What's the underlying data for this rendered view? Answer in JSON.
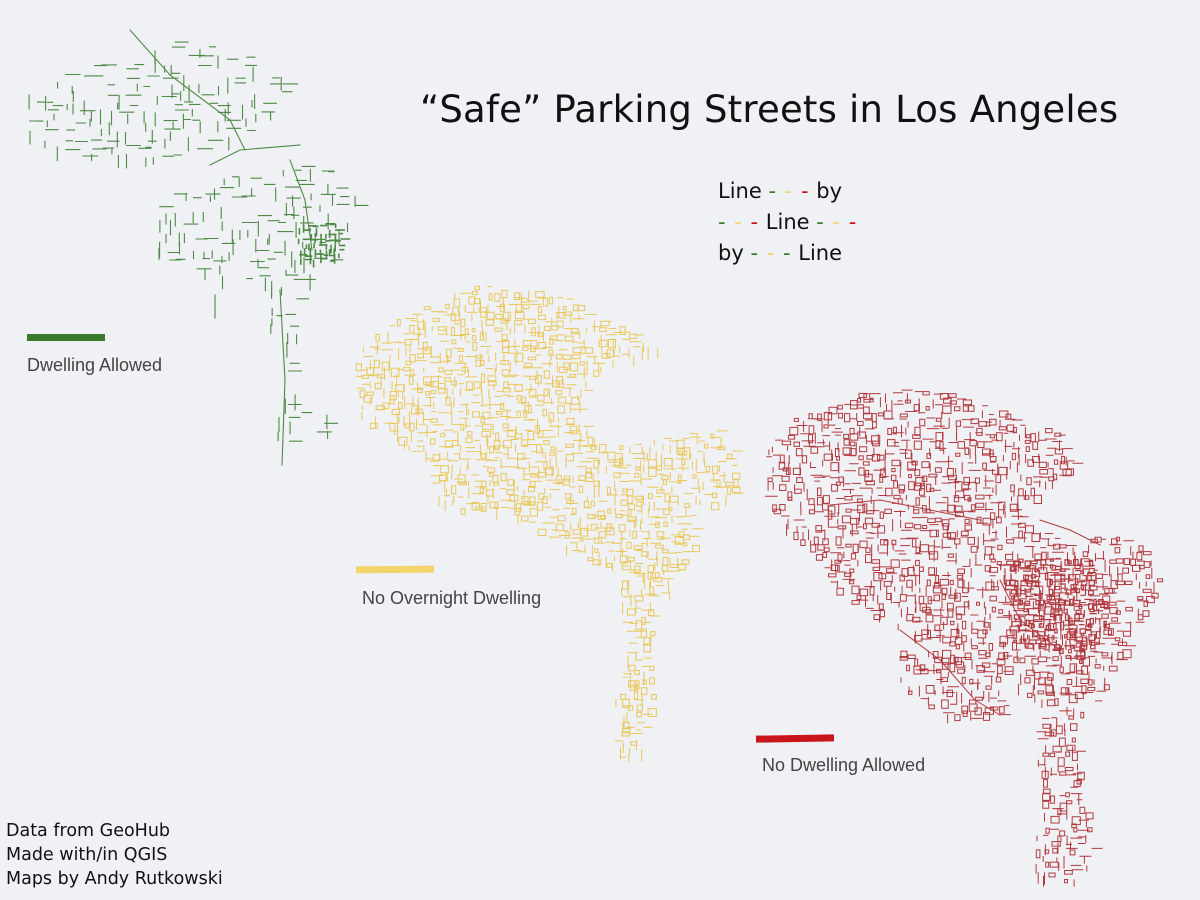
{
  "title": "“Safe” Parking Streets in Los Angeles",
  "poem": {
    "line1": {
      "a": "Line",
      "b": "by"
    },
    "line2": {
      "b": "Line"
    },
    "line3": {
      "a": "by",
      "b": "Line"
    },
    "dash": "- - -"
  },
  "legend": [
    {
      "label": "Dwelling Allowed",
      "color": "#3a7a2c"
    },
    {
      "label": "No Overnight Dwelling",
      "color": "#f3d46a"
    },
    {
      "label": "No Dwelling Allowed",
      "color": "#c8141a"
    }
  ],
  "map_colors": {
    "green": "#4e8a45",
    "yellow": "#e9c85a",
    "red": "#b23a3f"
  },
  "credits": [
    "Data from GeoHub",
    "Made with/in QGIS",
    "Maps by Andy Rutkowski"
  ]
}
